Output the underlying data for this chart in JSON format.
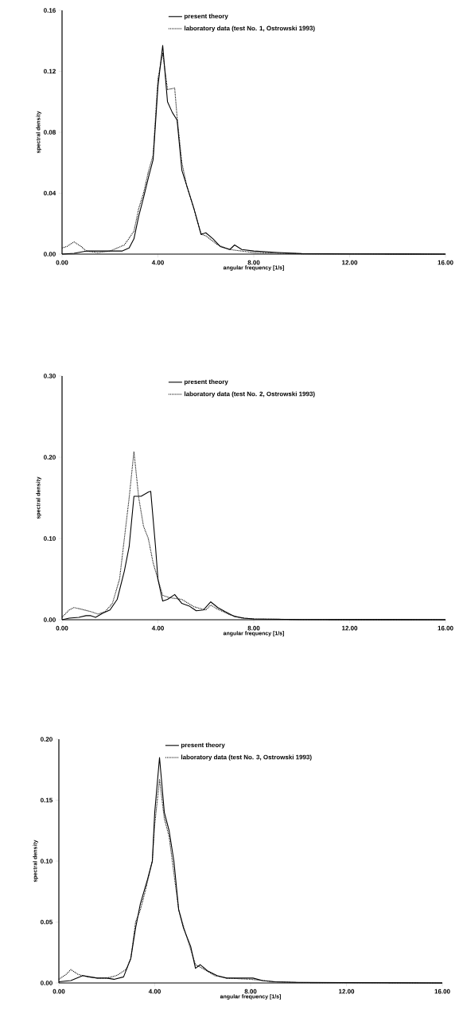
{
  "chart_data": [
    {
      "type": "line",
      "xlabel": "angular frequency [1/s]",
      "ylabel": "spectral density",
      "legend": "top right",
      "xlim": [
        0,
        16
      ],
      "ylim": [
        0,
        0.16
      ],
      "xticks": [
        {
          "value": 0,
          "label": "0.00"
        },
        {
          "value": 4,
          "label": "4.00"
        },
        {
          "value": 8,
          "label": "8.00"
        },
        {
          "value": 12,
          "label": "12.00"
        },
        {
          "value": 16,
          "label": "16.00"
        }
      ],
      "yticks": [
        {
          "value": 0,
          "label": "0.00"
        },
        {
          "value": 0.04,
          "label": "0.04"
        },
        {
          "value": 0.08,
          "label": "0.08"
        },
        {
          "value": 0.12,
          "label": "0.12"
        },
        {
          "value": 0.16,
          "label": "0.16"
        }
      ],
      "series": [
        {
          "name": "present theory",
          "color": "#000000",
          "line_style": "solid",
          "x": [
            0,
            0.5,
            1,
            1.5,
            2,
            2.5,
            2.8,
            3.0,
            3.2,
            3.4,
            3.6,
            3.8,
            4.0,
            4.2,
            4.4,
            4.6,
            4.8,
            5.0,
            5.2,
            5.5,
            5.8,
            6.0,
            6.3,
            6.6,
            7.0,
            7.2,
            7.5,
            8,
            9,
            10,
            12,
            16
          ],
          "values": [
            0,
            0.0005,
            0.002,
            0.002,
            0.002,
            0.002,
            0.004,
            0.01,
            0.025,
            0.037,
            0.05,
            0.062,
            0.11,
            0.137,
            0.1,
            0.093,
            0.088,
            0.055,
            0.045,
            0.03,
            0.013,
            0.014,
            0.01,
            0.005,
            0.003,
            0.006,
            0.003,
            0.002,
            0.001,
            0.0003,
            0.0001,
            0
          ]
        },
        {
          "name": "laboratory data (test No. 1, Ostrowski 1993)",
          "color": "#000000",
          "line_style": "dotted",
          "x": [
            0,
            0.2,
            0.5,
            0.8,
            1,
            1.5,
            2,
            2.3,
            2.6,
            3.0,
            3.2,
            3.4,
            3.6,
            3.8,
            4.0,
            4.2,
            4.4,
            4.7,
            4.8,
            5.0,
            5.2,
            5.5,
            5.8,
            6.0,
            6.5,
            7.0,
            7.5,
            8,
            10,
            16
          ],
          "values": [
            0.004,
            0.005,
            0.008,
            0.005,
            0.002,
            0.001,
            0.002,
            0.004,
            0.006,
            0.015,
            0.03,
            0.04,
            0.054,
            0.065,
            0.115,
            0.132,
            0.108,
            0.109,
            0.09,
            0.06,
            0.045,
            0.03,
            0.013,
            0.012,
            0.006,
            0.003,
            0.002,
            0.001,
            0.0002,
            0
          ]
        }
      ]
    },
    {
      "type": "line",
      "xlabel": "angular frequency [1/s]",
      "ylabel": "spectral density",
      "legend": "top right",
      "xlim": [
        0,
        16
      ],
      "ylim": [
        0,
        0.3
      ],
      "xticks": [
        {
          "value": 0,
          "label": "0.00"
        },
        {
          "value": 4,
          "label": "4.00"
        },
        {
          "value": 8,
          "label": "8.00"
        },
        {
          "value": 12,
          "label": "12.00"
        },
        {
          "value": 16,
          "label": "16.00"
        }
      ],
      "yticks": [
        {
          "value": 0,
          "label": "0.00"
        },
        {
          "value": 0.1,
          "label": "0.10"
        },
        {
          "value": 0.2,
          "label": "0.20"
        },
        {
          "value": 0.3,
          "label": "0.30"
        }
      ],
      "series": [
        {
          "name": "present theory",
          "color": "#000000",
          "line_style": "solid",
          "x": [
            0,
            0.3,
            0.7,
            1,
            1.2,
            1.4,
            1.7,
            2.0,
            2.3,
            2.6,
            2.8,
            3.0,
            3.3,
            3.6,
            3.7,
            3.9,
            4.0,
            4.2,
            4.4,
            4.7,
            5.0,
            5.3,
            5.6,
            5.9,
            6.2,
            6.5,
            6.8,
            7.2,
            7.6,
            8,
            10,
            16
          ],
          "values": [
            0,
            0.002,
            0.003,
            0.005,
            0.005,
            0.003,
            0.008,
            0.012,
            0.025,
            0.06,
            0.09,
            0.152,
            0.152,
            0.157,
            0.158,
            0.09,
            0.05,
            0.023,
            0.025,
            0.031,
            0.02,
            0.017,
            0.011,
            0.012,
            0.022,
            0.015,
            0.01,
            0.004,
            0.002,
            0.001,
            0.0003,
            0
          ]
        },
        {
          "name": "laboratory data (test No. 2, Ostrowski 1993)",
          "color": "#000000",
          "line_style": "dotted",
          "x": [
            0,
            0.3,
            0.5,
            0.8,
            1.2,
            1.5,
            1.8,
            2.1,
            2.4,
            2.6,
            2.8,
            3.0,
            3.2,
            3.4,
            3.6,
            3.8,
            4.0,
            4.2,
            4.5,
            5.0,
            5.5,
            6.0,
            6.2,
            6.5,
            7.0,
            7.5,
            8,
            10,
            16
          ],
          "values": [
            0.003,
            0.012,
            0.015,
            0.013,
            0.01,
            0.007,
            0.01,
            0.02,
            0.05,
            0.1,
            0.15,
            0.207,
            0.15,
            0.115,
            0.1,
            0.07,
            0.05,
            0.03,
            0.027,
            0.025,
            0.016,
            0.012,
            0.018,
            0.013,
            0.006,
            0.002,
            0.001,
            0.0002,
            0
          ]
        }
      ]
    },
    {
      "type": "line",
      "xlabel": "angular frequency [1/s]",
      "ylabel": "spectral density",
      "legend": "top right",
      "xlim": [
        0,
        16
      ],
      "ylim": [
        0,
        0.2
      ],
      "xticks": [
        {
          "value": 0,
          "label": "0.00"
        },
        {
          "value": 4,
          "label": "4.00"
        },
        {
          "value": 8,
          "label": "8.00"
        },
        {
          "value": 12,
          "label": "12.00"
        },
        {
          "value": 16,
          "label": "16.00"
        }
      ],
      "yticks": [
        {
          "value": 0,
          "label": "0.00"
        },
        {
          "value": 0.05,
          "label": "0.05"
        },
        {
          "value": 0.1,
          "label": "0.10"
        },
        {
          "value": 0.15,
          "label": "0.15"
        },
        {
          "value": 0.2,
          "label": "0.20"
        }
      ],
      "series": [
        {
          "name": "present theory",
          "color": "#000000",
          "line_style": "solid",
          "x": [
            0,
            0.5,
            1.0,
            1.3,
            1.6,
            2.0,
            2.3,
            2.7,
            3.0,
            3.2,
            3.4,
            3.7,
            3.9,
            4.0,
            4.2,
            4.4,
            4.6,
            4.8,
            5.0,
            5.2,
            5.5,
            5.7,
            5.9,
            6.2,
            6.6,
            7,
            7.5,
            8.1,
            8.5,
            9,
            10,
            12,
            16
          ],
          "values": [
            0.001,
            0.002,
            0.006,
            0.005,
            0.004,
            0.004,
            0.003,
            0.005,
            0.02,
            0.045,
            0.065,
            0.085,
            0.1,
            0.14,
            0.185,
            0.14,
            0.125,
            0.1,
            0.06,
            0.045,
            0.03,
            0.012,
            0.015,
            0.01,
            0.006,
            0.004,
            0.004,
            0.004,
            0.002,
            0.001,
            0.0005,
            0.0003,
            0
          ]
        },
        {
          "name": "laboratory data (test No. 3, Ostrowski 1993)",
          "color": "#000000",
          "line_style": "dotted",
          "x": [
            0,
            0.3,
            0.5,
            0.8,
            1.2,
            1.6,
            2.0,
            2.4,
            2.8,
            3.0,
            3.2,
            3.4,
            3.6,
            3.9,
            4.0,
            4.2,
            4.4,
            4.6,
            4.8,
            5.0,
            5.3,
            5.7,
            6.0,
            6.5,
            7,
            8,
            9,
            10,
            16
          ],
          "values": [
            0.003,
            0.007,
            0.011,
            0.007,
            0.005,
            0.004,
            0.004,
            0.006,
            0.011,
            0.02,
            0.05,
            0.06,
            0.075,
            0.1,
            0.13,
            0.167,
            0.135,
            0.12,
            0.09,
            0.06,
            0.04,
            0.015,
            0.012,
            0.006,
            0.004,
            0.003,
            0.001,
            0.0003,
            0
          ]
        }
      ]
    }
  ]
}
